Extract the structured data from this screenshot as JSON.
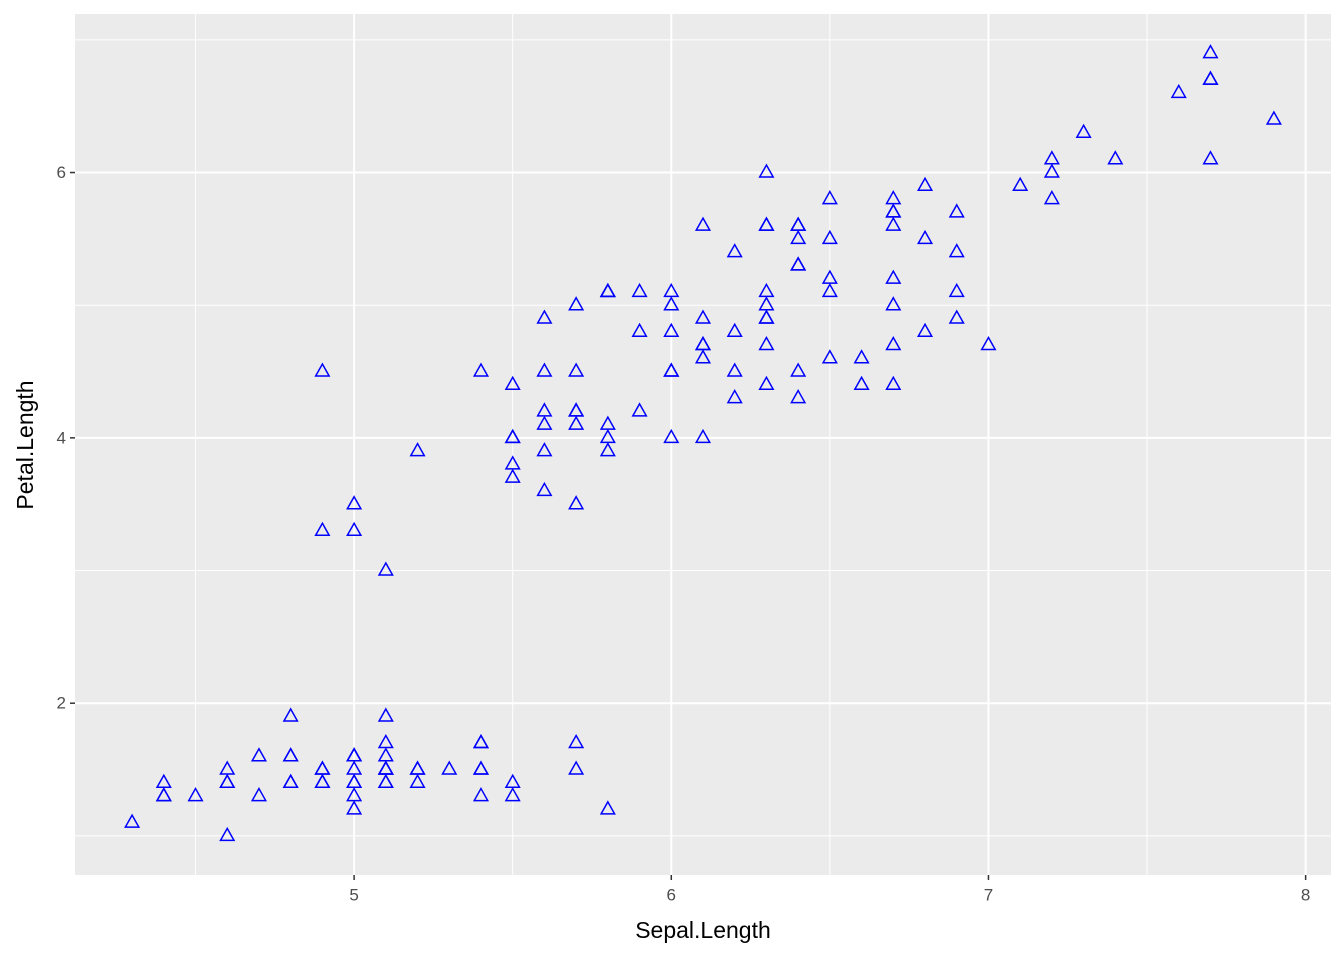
{
  "chart_data": {
    "type": "scatter",
    "x_label": "Sepal.Length",
    "y_label": "Petal.Length",
    "xlim": [
      4.12,
      8.08
    ],
    "ylim": [
      0.705,
      7.195
    ],
    "xticks": [
      5,
      6,
      7,
      8
    ],
    "yticks": [
      2,
      4,
      6
    ],
    "x_minor_ticks": [
      4.5,
      5.5,
      6.5,
      7.5
    ],
    "y_minor_ticks": [
      1,
      3,
      5,
      7
    ],
    "grid": true,
    "marker": "triangle-open",
    "series": [
      {
        "color": "#0000ff",
        "x": [
          5.1,
          4.9,
          4.7,
          4.6,
          5.0,
          5.4,
          4.6,
          5.0,
          4.4,
          4.9,
          5.4,
          4.8,
          4.8,
          4.3,
          5.8,
          5.7,
          5.4,
          5.1,
          5.7,
          5.1,
          5.4,
          5.1,
          4.6,
          5.1,
          4.8,
          5.0,
          5.0,
          5.2,
          5.2,
          4.7,
          4.8,
          5.4,
          5.2,
          5.5,
          4.9,
          5.0,
          5.5,
          4.9,
          4.4,
          5.1,
          5.0,
          4.5,
          4.4,
          5.0,
          5.1,
          4.8,
          5.1,
          4.6,
          5.3,
          5.0,
          7.0,
          6.4,
          6.9,
          5.5,
          6.5,
          5.7,
          6.3,
          4.9,
          6.6,
          5.2,
          5.0,
          5.9,
          6.0,
          6.1,
          5.6,
          6.7,
          5.6,
          5.8,
          6.2,
          5.6,
          5.9,
          6.1,
          6.3,
          6.1,
          6.4,
          6.6,
          6.8,
          6.7,
          6.0,
          5.7,
          5.5,
          5.5,
          5.8,
          6.0,
          5.4,
          6.0,
          6.7,
          6.3,
          5.6,
          5.5,
          5.5,
          6.1,
          5.8,
          5.0,
          5.6,
          5.7,
          5.7,
          6.2,
          5.1,
          5.7,
          6.3,
          5.8,
          7.1,
          6.3,
          6.5,
          7.6,
          4.9,
          7.3,
          6.7,
          7.2,
          6.5,
          6.4,
          6.8,
          5.7,
          5.8,
          6.4,
          6.5,
          7.7,
          7.7,
          6.0,
          6.9,
          5.6,
          7.7,
          6.3,
          6.7,
          7.2,
          6.2,
          6.1,
          6.4,
          7.2,
          7.4,
          7.9,
          6.4,
          6.3,
          6.1,
          7.7,
          6.3,
          6.4,
          6.0,
          6.9,
          6.7,
          6.9,
          5.8,
          6.8,
          6.7,
          6.7,
          6.3,
          6.5,
          6.2,
          5.9
        ],
        "values": [
          1.4,
          1.4,
          1.3,
          1.5,
          1.4,
          1.7,
          1.4,
          1.5,
          1.4,
          1.5,
          1.5,
          1.6,
          1.4,
          1.1,
          1.2,
          1.5,
          1.3,
          1.4,
          1.7,
          1.5,
          1.7,
          1.5,
          1.0,
          1.7,
          1.9,
          1.6,
          1.6,
          1.5,
          1.4,
          1.6,
          1.6,
          1.5,
          1.5,
          1.4,
          1.5,
          1.2,
          1.3,
          1.4,
          1.3,
          1.5,
          1.3,
          1.3,
          1.3,
          1.6,
          1.9,
          1.4,
          1.6,
          1.4,
          1.5,
          1.4,
          4.7,
          4.5,
          4.9,
          4.0,
          4.6,
          4.5,
          4.7,
          3.3,
          4.6,
          3.9,
          3.5,
          4.2,
          4.0,
          4.7,
          3.6,
          4.4,
          4.5,
          4.1,
          4.5,
          3.9,
          4.8,
          4.0,
          4.9,
          4.7,
          4.3,
          4.4,
          4.8,
          5.0,
          4.5,
          3.5,
          3.8,
          3.7,
          3.9,
          5.1,
          4.5,
          4.5,
          4.7,
          4.4,
          4.1,
          4.0,
          4.4,
          4.6,
          4.0,
          3.3,
          4.2,
          4.2,
          4.2,
          4.3,
          3.0,
          4.1,
          6.0,
          5.1,
          5.9,
          5.6,
          5.8,
          6.6,
          4.5,
          6.3,
          5.8,
          6.1,
          5.1,
          5.3,
          5.5,
          5.0,
          5.1,
          5.3,
          5.5,
          6.7,
          6.9,
          5.0,
          5.7,
          4.9,
          6.7,
          4.9,
          5.7,
          6.0,
          4.8,
          4.9,
          5.6,
          5.8,
          6.1,
          6.4,
          5.6,
          5.1,
          5.6,
          6.1,
          5.6,
          5.5,
          4.8,
          5.4,
          5.6,
          5.1,
          5.1,
          5.9,
          5.7,
          5.2,
          5.0,
          5.2,
          5.4,
          5.1
        ]
      }
    ]
  }
}
